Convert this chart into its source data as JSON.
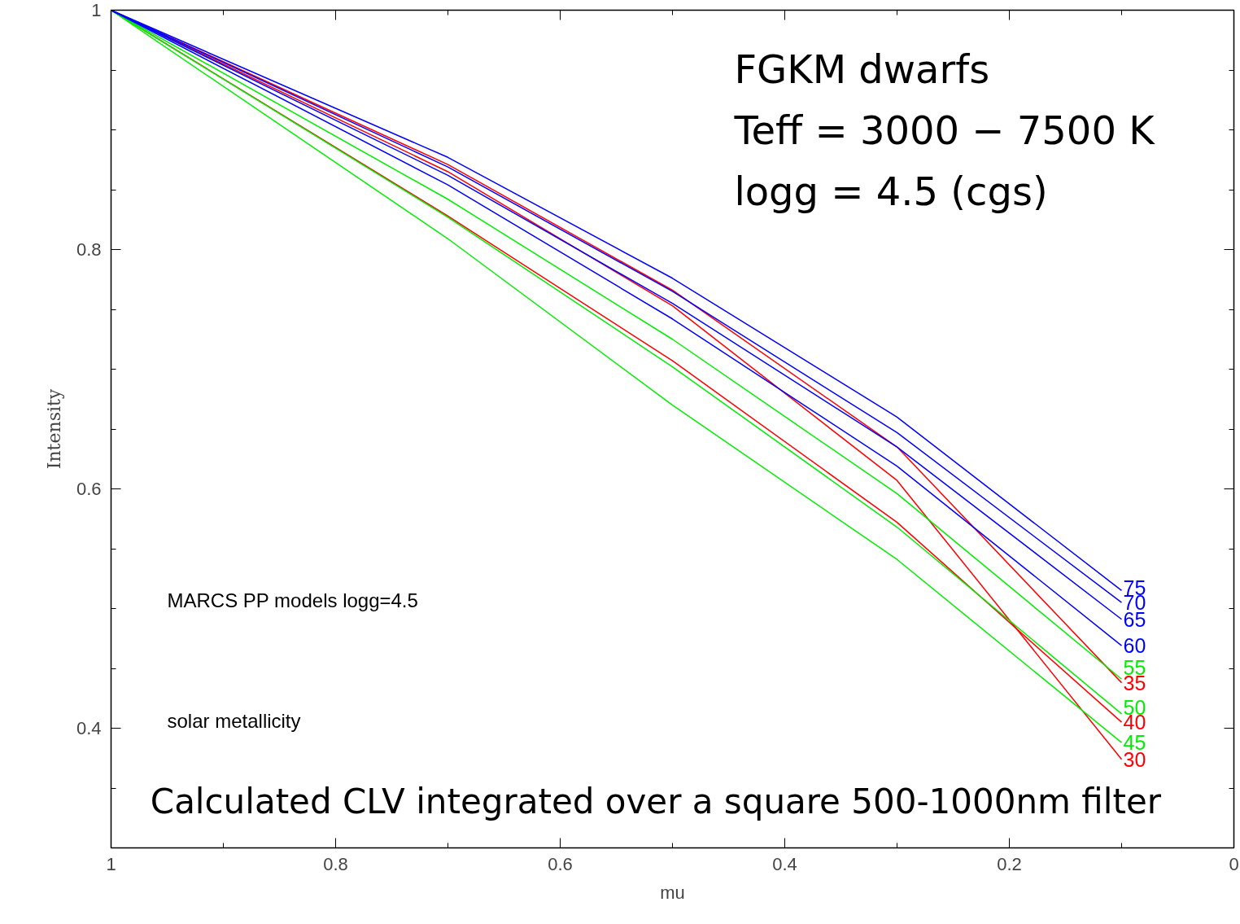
{
  "chart_data": {
    "type": "line",
    "xlabel": "mu",
    "ylabel": "Intensity",
    "x": [
      1,
      0.7,
      0.5,
      0.3,
      0.1
    ],
    "xlim": [
      1,
      0
    ],
    "ylim": [
      0.3,
      1
    ],
    "xticks": [
      1,
      {
        "value": 0.9,
        "label": null
      },
      0.8,
      {
        "value": 0.7,
        "label": null
      },
      0.6,
      {
        "value": 0.5,
        "label": null
      },
      0.4,
      {
        "value": 0.3,
        "label": null
      },
      0.2,
      {
        "value": 0.1,
        "label": null
      },
      0
    ],
    "yticks": [
      {
        "value": 0.35,
        "label": null
      },
      0.4,
      {
        "value": 0.45,
        "label": null
      },
      {
        "value": 0.5,
        "label": null
      },
      {
        "value": 0.55,
        "label": null
      },
      0.6,
      {
        "value": 0.65,
        "label": null
      },
      {
        "value": 0.7,
        "label": null
      },
      {
        "value": 0.75,
        "label": null
      },
      0.8,
      {
        "value": 0.85,
        "label": null
      },
      {
        "value": 0.9,
        "label": null
      },
      {
        "value": 0.95,
        "label": null
      },
      1
    ],
    "grid": false,
    "legend": false,
    "marker": "none",
    "line_style": "solid",
    "series": [
      {
        "name": "30",
        "color": "#ff0000",
        "values": [
          1,
          0.865,
          0.753,
          0.607,
          0.374
        ]
      },
      {
        "name": "35",
        "color": "#ff0000",
        "values": [
          1,
          0.871,
          0.766,
          0.635,
          0.438
        ]
      },
      {
        "name": "40",
        "color": "#ff0000",
        "values": [
          1,
          0.828,
          0.707,
          0.572,
          0.405
        ]
      },
      {
        "name": "45",
        "color": "#00ee00",
        "values": [
          1,
          0.809,
          0.67,
          0.541,
          0.388
        ]
      },
      {
        "name": "50",
        "color": "#00ee00",
        "values": [
          1,
          0.827,
          0.702,
          0.568,
          0.412
        ]
      },
      {
        "name": "55",
        "color": "#00ee00",
        "values": [
          1,
          0.842,
          0.725,
          0.596,
          0.441
        ]
      },
      {
        "name": "60",
        "color": "#0000ff",
        "values": [
          1,
          0.854,
          0.742,
          0.619,
          0.469
        ]
      },
      {
        "name": "65",
        "color": "#0000ff",
        "values": [
          1,
          0.862,
          0.755,
          0.635,
          0.491
        ]
      },
      {
        "name": "70",
        "color": "#0000ff",
        "values": [
          1,
          0.869,
          0.765,
          0.647,
          0.505
        ]
      },
      {
        "name": "75",
        "color": "#0000ff",
        "values": [
          1,
          0.877,
          0.776,
          0.66,
          0.515
        ]
      }
    ],
    "annotations": [
      "FGKM dwarfs",
      "Teff = 3000 − 7500 K",
      "logg = 4.5 (cgs)",
      "MARCS PP models logg=4.5",
      "solar metallicity",
      "Calculated CLV integrated over a square 500-1000nm filter"
    ]
  }
}
